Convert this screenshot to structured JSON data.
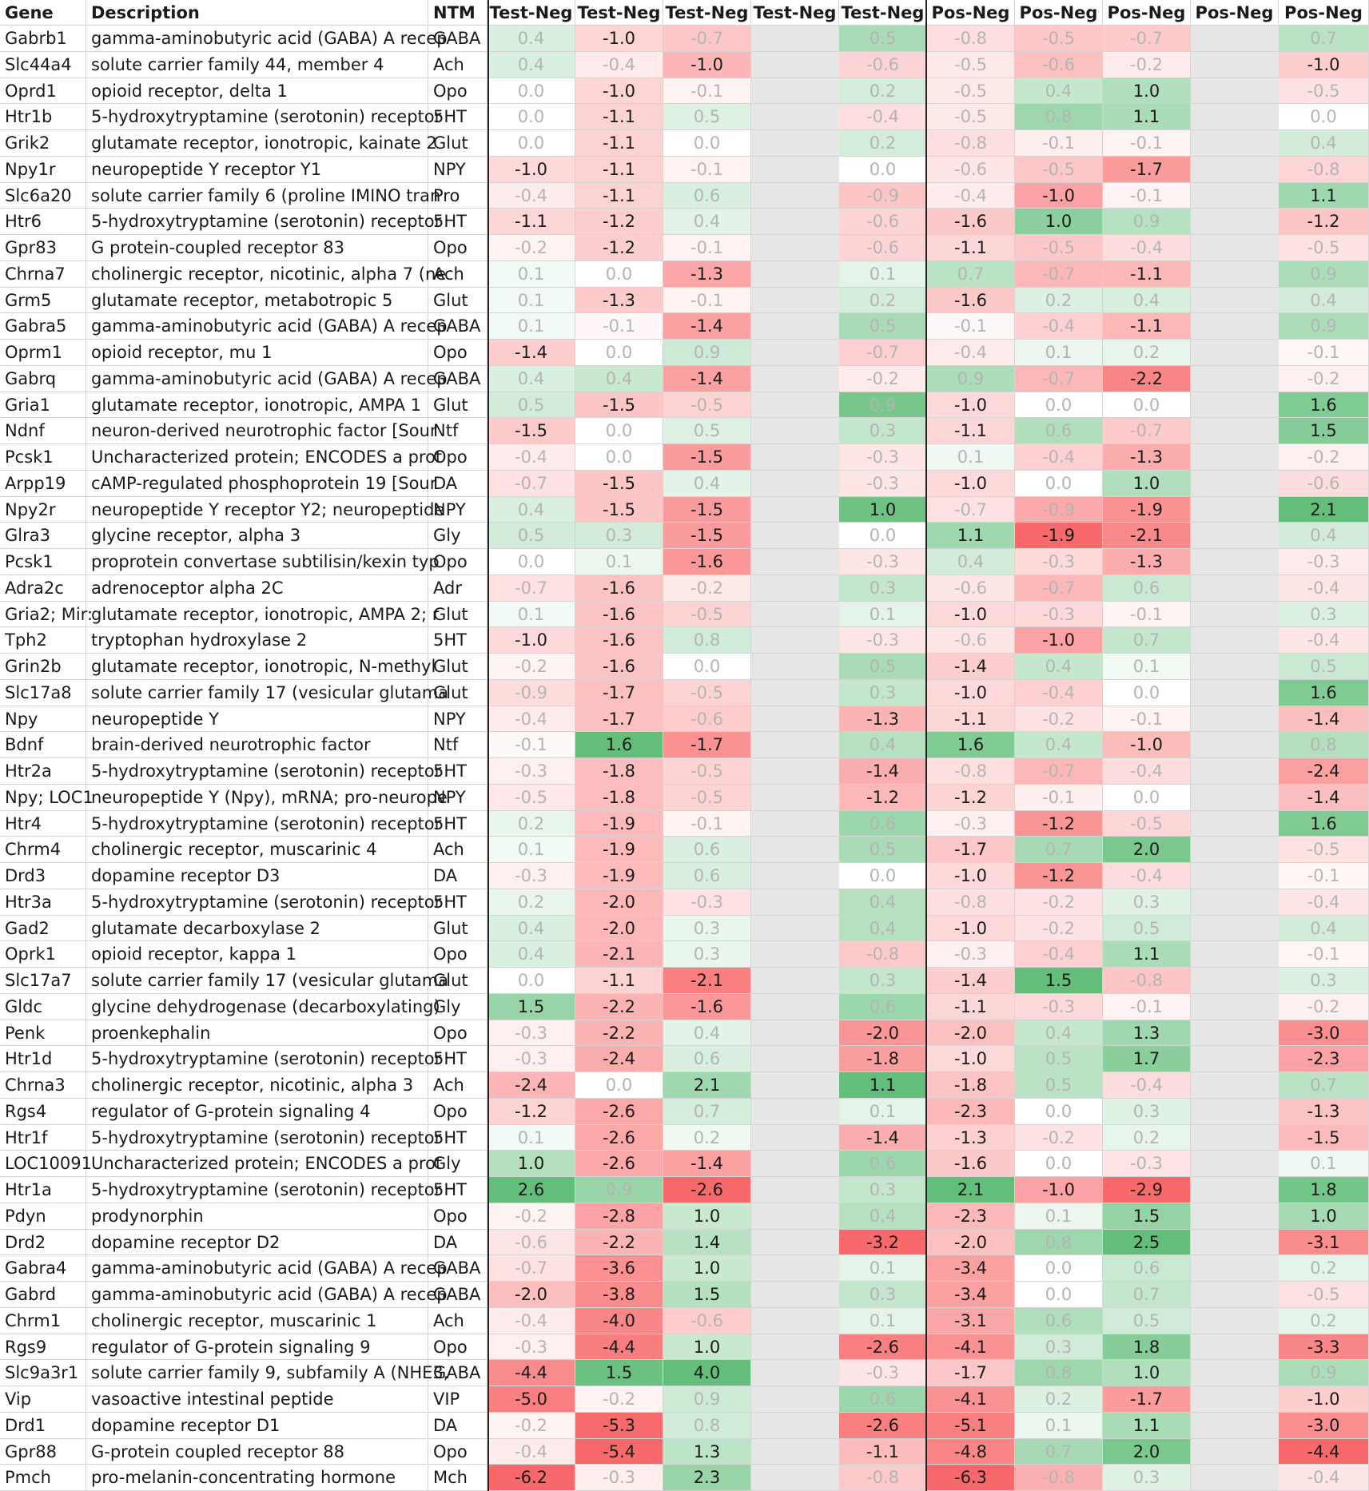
{
  "chart_data": {
    "type": "heatmap",
    "columns": {
      "gene": "Gene",
      "description": "Description",
      "ntm": "NTM",
      "values": [
        "Test-Neg",
        "Test-Neg",
        "Test-Neg",
        "Test-Neg",
        "Test-Neg",
        "Pos-Neg",
        "Pos-Neg",
        "Pos-Neg",
        "Pos-Neg",
        "Pos-Neg"
      ]
    },
    "empty_columns": [
      3,
      8
    ],
    "color_scale": {
      "negative": "#f8696b",
      "zero": "#ffffff",
      "positive": "#63be7b"
    },
    "rows": [
      {
        "gene": "Gabrb1",
        "description": "gamma-aminobutyric acid (GABA) A recep",
        "ntm": "GABA",
        "values": [
          0.4,
          -1.0,
          -0.7,
          null,
          0.5,
          -0.8,
          -0.5,
          -0.7,
          null,
          0.7
        ]
      },
      {
        "gene": "Slc44a4",
        "description": "solute carrier family 44, member 4",
        "ntm": "Ach",
        "values": [
          0.4,
          -0.4,
          -1.0,
          null,
          -0.6,
          -0.5,
          -0.6,
          -0.2,
          null,
          -1.0
        ]
      },
      {
        "gene": "Oprd1",
        "description": "opioid receptor, delta 1",
        "ntm": "Opo",
        "values": [
          0.0,
          -1.0,
          -0.1,
          null,
          0.2,
          -0.5,
          0.4,
          1.0,
          null,
          -0.5
        ]
      },
      {
        "gene": "Htr1b",
        "description": "5-hydroxytryptamine (serotonin) receptor",
        "ntm": "5HT",
        "values": [
          0.0,
          -1.1,
          0.5,
          null,
          -0.4,
          -0.5,
          0.8,
          1.1,
          null,
          0.0
        ]
      },
      {
        "gene": "Grik2",
        "description": "glutamate receptor, ionotropic, kainate 2",
        "ntm": "Glut",
        "values": [
          0.0,
          -1.1,
          0.0,
          null,
          0.2,
          -0.8,
          -0.1,
          -0.1,
          null,
          0.4
        ]
      },
      {
        "gene": "Npy1r",
        "description": "neuropeptide Y receptor Y1",
        "ntm": "NPY",
        "values": [
          -1.0,
          -1.1,
          -0.1,
          null,
          0.0,
          -0.6,
          -0.5,
          -1.7,
          null,
          -0.8
        ]
      },
      {
        "gene": "Slc6a20",
        "description": "solute carrier family 6 (proline IMINO tran",
        "ntm": "Pro",
        "values": [
          -0.4,
          -1.1,
          0.6,
          null,
          -0.9,
          -0.4,
          -1.0,
          -0.1,
          null,
          1.1
        ]
      },
      {
        "gene": "Htr6",
        "description": "5-hydroxytryptamine (serotonin) receptor",
        "ntm": "5HT",
        "values": [
          -1.1,
          -1.2,
          0.4,
          null,
          -0.6,
          -1.6,
          1.0,
          0.9,
          null,
          -1.2
        ]
      },
      {
        "gene": "Gpr83",
        "description": "G protein-coupled receptor 83",
        "ntm": "Opo",
        "values": [
          -0.2,
          -1.2,
          -0.1,
          null,
          -0.6,
          -1.1,
          -0.5,
          -0.4,
          null,
          -0.5
        ]
      },
      {
        "gene": "Chrna7",
        "description": "cholinergic receptor, nicotinic, alpha 7 (ne",
        "ntm": "Ach",
        "values": [
          0.1,
          0.0,
          -1.3,
          null,
          0.1,
          0.7,
          -0.7,
          -1.1,
          null,
          0.9
        ]
      },
      {
        "gene": "Grm5",
        "description": "glutamate receptor, metabotropic 5",
        "ntm": "Glut",
        "values": [
          0.1,
          -1.3,
          -0.1,
          null,
          0.2,
          -1.6,
          0.2,
          0.4,
          null,
          0.4
        ]
      },
      {
        "gene": "Gabra5",
        "description": "gamma-aminobutyric acid (GABA) A recep",
        "ntm": "GABA",
        "values": [
          0.1,
          -0.1,
          -1.4,
          null,
          0.5,
          -0.1,
          -0.4,
          -1.1,
          null,
          0.9
        ]
      },
      {
        "gene": "Oprm1",
        "description": "opioid receptor, mu 1",
        "ntm": "Opo",
        "values": [
          -1.4,
          0.0,
          0.9,
          null,
          -0.7,
          -0.4,
          0.1,
          0.2,
          null,
          -0.1
        ]
      },
      {
        "gene": "Gabrq",
        "description": "gamma-aminobutyric acid (GABA) A recep",
        "ntm": "GABA",
        "values": [
          0.4,
          0.4,
          -1.4,
          null,
          -0.2,
          0.9,
          -0.7,
          -2.2,
          null,
          -0.2
        ]
      },
      {
        "gene": "Gria1",
        "description": "glutamate receptor, ionotropic, AMPA 1",
        "ntm": "Glut",
        "values": [
          0.5,
          -1.5,
          -0.5,
          null,
          0.9,
          -1.0,
          0.0,
          0.0,
          null,
          1.6
        ]
      },
      {
        "gene": "Ndnf",
        "description": "neuron-derived neurotrophic factor [Sour",
        "ntm": "Ntf",
        "values": [
          -1.5,
          0.0,
          0.5,
          null,
          0.3,
          -1.1,
          0.6,
          -0.7,
          null,
          1.5
        ]
      },
      {
        "gene": "Pcsk1",
        "description": "Uncharacterized protein; ENCODES a prot",
        "ntm": "Opo",
        "values": [
          -0.4,
          0.0,
          -1.5,
          null,
          -0.3,
          0.1,
          -0.4,
          -1.3,
          null,
          -0.2
        ]
      },
      {
        "gene": "Arpp19",
        "description": "cAMP-regulated phosphoprotein 19 [Sour",
        "ntm": "DA",
        "values": [
          -0.7,
          -1.5,
          0.4,
          null,
          -0.3,
          -1.0,
          0.0,
          1.0,
          null,
          -0.6
        ]
      },
      {
        "gene": "Npy2r",
        "description": "neuropeptide Y receptor Y2; neuropeptide",
        "ntm": "NPY",
        "values": [
          0.4,
          -1.5,
          -1.5,
          null,
          1.0,
          -0.7,
          -0.9,
          -1.9,
          null,
          2.1
        ]
      },
      {
        "gene": "Glra3",
        "description": "glycine receptor, alpha 3",
        "ntm": "Gly",
        "values": [
          0.5,
          0.3,
          -1.5,
          null,
          0.0,
          1.1,
          -1.9,
          -2.1,
          null,
          0.4
        ]
      },
      {
        "gene": "Pcsk1",
        "description": "proprotein convertase subtilisin/kexin typ",
        "ntm": "Opo",
        "values": [
          0.0,
          0.1,
          -1.6,
          null,
          -0.3,
          0.4,
          -0.3,
          -1.3,
          null,
          -0.3
        ]
      },
      {
        "gene": "Adra2c",
        "description": "adrenoceptor alpha 2C",
        "ntm": "Adr",
        "values": [
          -0.7,
          -1.6,
          -0.2,
          null,
          0.3,
          -0.6,
          -0.7,
          0.6,
          null,
          -0.4
        ]
      },
      {
        "gene": "Gria2; Mir:",
        "description": "glutamate receptor, ionotropic, AMPA 2; r",
        "ntm": "Glut",
        "values": [
          0.1,
          -1.6,
          -0.5,
          null,
          0.1,
          -1.0,
          -0.3,
          -0.1,
          null,
          0.3
        ]
      },
      {
        "gene": "Tph2",
        "description": "tryptophan hydroxylase 2",
        "ntm": "5HT",
        "values": [
          -1.0,
          -1.6,
          0.8,
          null,
          -0.3,
          -0.6,
          -1.0,
          0.7,
          null,
          -0.4
        ]
      },
      {
        "gene": "Grin2b",
        "description": "glutamate receptor, ionotropic, N-methyl",
        "ntm": "Glut",
        "values": [
          -0.2,
          -1.6,
          0.0,
          null,
          0.5,
          -1.4,
          0.4,
          0.1,
          null,
          0.5
        ]
      },
      {
        "gene": "Slc17a8",
        "description": "solute carrier family 17 (vesicular glutama",
        "ntm": "Glut",
        "values": [
          -0.9,
          -1.7,
          -0.5,
          null,
          0.3,
          -1.0,
          -0.4,
          0.0,
          null,
          1.6
        ]
      },
      {
        "gene": "Npy",
        "description": "neuropeptide Y",
        "ntm": "NPY",
        "values": [
          -0.4,
          -1.7,
          -0.6,
          null,
          -1.3,
          -1.1,
          -0.2,
          -0.1,
          null,
          -1.4
        ]
      },
      {
        "gene": "Bdnf",
        "description": "brain-derived neurotrophic factor",
        "ntm": "Ntf",
        "values": [
          -0.1,
          1.6,
          -1.7,
          null,
          0.4,
          1.6,
          0.4,
          -1.0,
          null,
          0.8
        ]
      },
      {
        "gene": "Htr2a",
        "description": "5-hydroxytryptamine (serotonin) receptor",
        "ntm": "5HT",
        "values": [
          -0.3,
          -1.8,
          -0.5,
          null,
          -1.4,
          -0.8,
          -0.7,
          -0.4,
          null,
          -2.4
        ]
      },
      {
        "gene": "Npy; LOC1",
        "description": "neuropeptide Y (Npy), mRNA; pro-neurope",
        "ntm": "NPY",
        "values": [
          -0.5,
          -1.8,
          -0.5,
          null,
          -1.2,
          -1.2,
          -0.1,
          0.0,
          null,
          -1.4
        ]
      },
      {
        "gene": "Htr4",
        "description": "5-hydroxytryptamine (serotonin) receptor",
        "ntm": "5HT",
        "values": [
          0.2,
          -1.9,
          -0.1,
          null,
          0.6,
          -0.3,
          -1.2,
          -0.5,
          null,
          1.6
        ]
      },
      {
        "gene": "Chrm4",
        "description": "cholinergic receptor, muscarinic 4",
        "ntm": "Ach",
        "values": [
          0.1,
          -1.9,
          0.6,
          null,
          0.5,
          -1.7,
          0.7,
          2.0,
          null,
          -0.5
        ]
      },
      {
        "gene": "Drd3",
        "description": "dopamine receptor D3",
        "ntm": "DA",
        "values": [
          -0.3,
          -1.9,
          0.6,
          null,
          0.0,
          -1.0,
          -1.2,
          -0.4,
          null,
          -0.1
        ]
      },
      {
        "gene": "Htr3a",
        "description": "5-hydroxytryptamine (serotonin) receptor",
        "ntm": "5HT",
        "values": [
          0.2,
          -2.0,
          -0.3,
          null,
          0.4,
          -0.8,
          -0.2,
          0.3,
          null,
          -0.4
        ]
      },
      {
        "gene": "Gad2",
        "description": "glutamate decarboxylase 2",
        "ntm": "Glut",
        "values": [
          0.4,
          -2.0,
          0.3,
          null,
          0.4,
          -1.0,
          -0.2,
          0.5,
          null,
          0.4
        ]
      },
      {
        "gene": "Oprk1",
        "description": "opioid receptor, kappa 1",
        "ntm": "Opo",
        "values": [
          0.4,
          -2.1,
          0.3,
          null,
          -0.8,
          -0.3,
          -0.4,
          1.1,
          null,
          -0.1
        ]
      },
      {
        "gene": "Slc17a7",
        "description": "solute carrier family 17 (vesicular glutama",
        "ntm": "Glut",
        "values": [
          0.0,
          -1.1,
          -2.1,
          null,
          0.3,
          -1.4,
          1.5,
          -0.8,
          null,
          0.3
        ]
      },
      {
        "gene": "Gldc",
        "description": "glycine dehydrogenase (decarboxylating)",
        "ntm": "Gly",
        "values": [
          1.5,
          -2.2,
          -1.6,
          null,
          0.6,
          -1.1,
          -0.3,
          -0.1,
          null,
          -0.2
        ]
      },
      {
        "gene": "Penk",
        "description": "proenkephalin",
        "ntm": "Opo",
        "values": [
          -0.3,
          -2.2,
          0.4,
          null,
          -2.0,
          -2.0,
          0.4,
          1.3,
          null,
          -3.0
        ]
      },
      {
        "gene": "Htr1d",
        "description": "5-hydroxytryptamine (serotonin) receptor",
        "ntm": "5HT",
        "values": [
          -0.3,
          -2.4,
          0.6,
          null,
          -1.8,
          -1.0,
          0.5,
          1.7,
          null,
          -2.3
        ]
      },
      {
        "gene": "Chrna3",
        "description": "cholinergic receptor, nicotinic, alpha 3",
        "ntm": "Ach",
        "values": [
          -2.4,
          0.0,
          2.1,
          null,
          1.1,
          -1.8,
          0.5,
          -0.4,
          null,
          0.7
        ]
      },
      {
        "gene": "Rgs4",
        "description": "regulator of G-protein signaling 4",
        "ntm": "Opo",
        "values": [
          -1.2,
          -2.6,
          0.7,
          null,
          0.1,
          -2.3,
          0.0,
          0.3,
          null,
          -1.3
        ]
      },
      {
        "gene": "Htr1f",
        "description": "5-hydroxytryptamine (serotonin) receptor",
        "ntm": "5HT",
        "values": [
          0.1,
          -2.6,
          0.2,
          null,
          -1.4,
          -1.3,
          -0.2,
          0.2,
          null,
          -1.5
        ]
      },
      {
        "gene": "LOC10091",
        "description": "Uncharacterized protein; ENCODES a prot",
        "ntm": "Gly",
        "values": [
          1.0,
          -2.6,
          -1.4,
          null,
          0.6,
          -1.6,
          0.0,
          -0.3,
          null,
          0.1
        ]
      },
      {
        "gene": "Htr1a",
        "description": "5-hydroxytryptamine (serotonin) receptor",
        "ntm": "5HT",
        "values": [
          2.6,
          0.9,
          -2.6,
          null,
          0.3,
          2.1,
          -1.0,
          -2.9,
          null,
          1.8
        ]
      },
      {
        "gene": "Pdyn",
        "description": "prodynorphin",
        "ntm": "Opo",
        "values": [
          -0.2,
          -2.8,
          1.0,
          null,
          0.4,
          -2.3,
          0.1,
          1.5,
          null,
          1.0
        ]
      },
      {
        "gene": "Drd2",
        "description": "dopamine receptor D2",
        "ntm": "DA",
        "values": [
          -0.6,
          -2.2,
          1.4,
          null,
          -3.2,
          -2.0,
          0.8,
          2.5,
          null,
          -3.1
        ]
      },
      {
        "gene": "Gabra4",
        "description": "gamma-aminobutyric acid (GABA) A recep",
        "ntm": "GABA",
        "values": [
          -0.7,
          -3.6,
          1.0,
          null,
          0.1,
          -3.4,
          0.0,
          0.6,
          null,
          0.2
        ]
      },
      {
        "gene": "Gabrd",
        "description": "gamma-aminobutyric acid (GABA) A recep",
        "ntm": "GABA",
        "values": [
          -2.0,
          -3.8,
          1.5,
          null,
          0.3,
          -3.4,
          0.0,
          0.7,
          null,
          -0.5
        ]
      },
      {
        "gene": "Chrm1",
        "description": "cholinergic receptor, muscarinic 1",
        "ntm": "Ach",
        "values": [
          -0.4,
          -4.0,
          -0.6,
          null,
          0.1,
          -3.1,
          0.6,
          0.5,
          null,
          0.2
        ]
      },
      {
        "gene": "Rgs9",
        "description": "regulator of G-protein signaling 9",
        "ntm": "Opo",
        "values": [
          -0.3,
          -4.4,
          1.0,
          null,
          -2.6,
          -4.1,
          0.3,
          1.8,
          null,
          -3.3
        ]
      },
      {
        "gene": "Slc9a3r1",
        "description": "solute carrier family 9, subfamily A (NHE3,",
        "ntm": "GABA",
        "values": [
          -4.4,
          1.5,
          4.0,
          null,
          -0.3,
          -1.7,
          0.8,
          1.0,
          null,
          0.9
        ]
      },
      {
        "gene": "Vip",
        "description": "vasoactive intestinal peptide",
        "ntm": "VIP",
        "values": [
          -5.0,
          -0.2,
          0.9,
          null,
          0.6,
          -4.1,
          0.2,
          -1.7,
          null,
          -1.0
        ]
      },
      {
        "gene": "Drd1",
        "description": "dopamine receptor D1",
        "ntm": "DA",
        "values": [
          -0.2,
          -5.3,
          0.8,
          null,
          -2.6,
          -5.1,
          0.1,
          1.1,
          null,
          -3.0
        ]
      },
      {
        "gene": "Gpr88",
        "description": "G-protein coupled receptor 88",
        "ntm": "Opo",
        "values": [
          -0.4,
          -5.4,
          1.3,
          null,
          -1.1,
          -4.8,
          0.7,
          2.0,
          null,
          -4.4
        ]
      },
      {
        "gene": "Pmch",
        "description": "pro-melanin-concentrating hormone",
        "ntm": "Mch",
        "values": [
          -6.2,
          -0.3,
          2.3,
          null,
          -0.8,
          -6.3,
          -0.8,
          0.3,
          null,
          -0.4
        ]
      }
    ]
  }
}
